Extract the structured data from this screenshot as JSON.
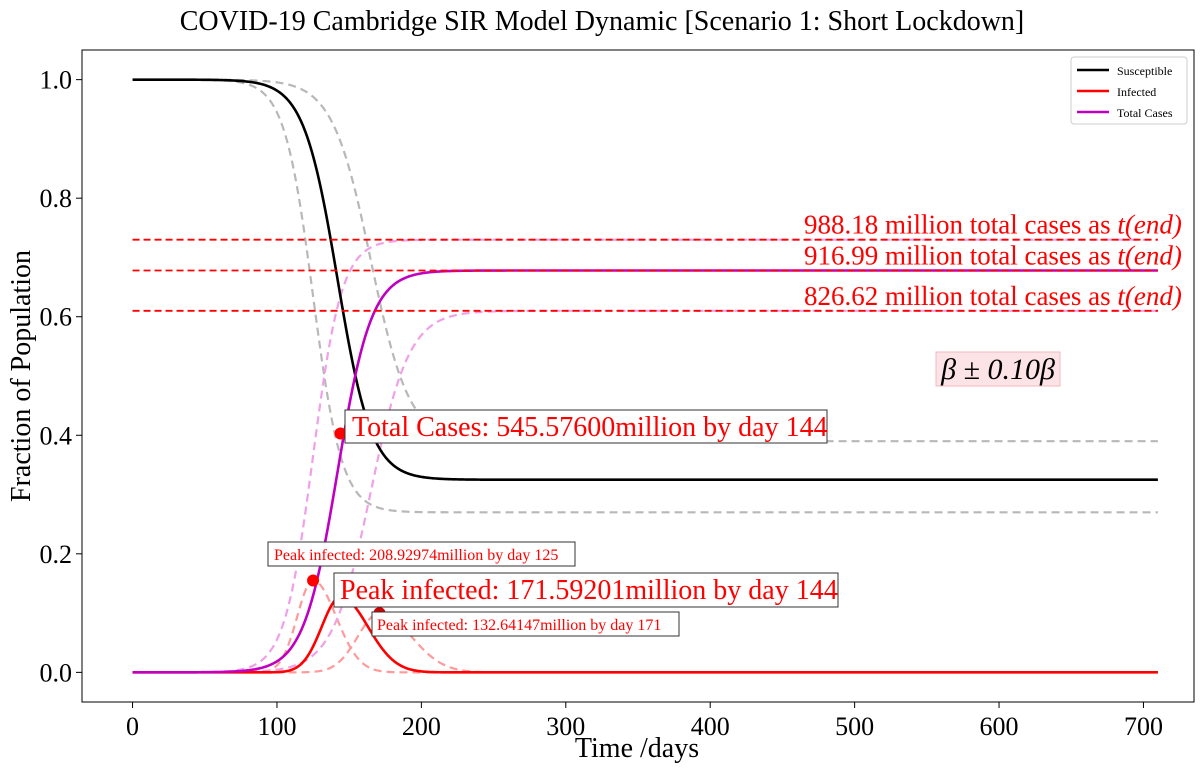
{
  "chart_data": {
    "type": "line",
    "title": "COVID-19 Cambridge SIR Model Dynamic [Scenario 1: Short Lockdown]",
    "xlabel": "Time /days",
    "ylabel": "Fraction of Population",
    "xlim": [
      -35,
      735
    ],
    "ylim": [
      -0.05,
      1.05
    ],
    "xticks": [
      0,
      100,
      200,
      300,
      400,
      500,
      600,
      700
    ],
    "yticks": [
      0.0,
      0.2,
      0.4,
      0.6,
      0.8,
      1.0
    ],
    "ytick_labels": [
      "0.0",
      "0.2",
      "0.4",
      "0.6",
      "0.8",
      "1.0"
    ],
    "grid": false,
    "legend_position": "top-right",
    "series": [
      {
        "name": "Susceptible",
        "color": "#000000",
        "style": "solid",
        "kind": "susceptible",
        "t0": 142,
        "k": 0.085,
        "final": 0.325
      },
      {
        "name": "Infected",
        "color": "#ff0000",
        "style": "solid",
        "kind": "infected",
        "peak": 0.127,
        "peak_day": 144,
        "sigma_left": 13,
        "sigma_right": 19
      },
      {
        "name": "Total Cases",
        "color": "#c000c0",
        "style": "solid",
        "kind": "total",
        "t0": 142,
        "k": 0.085,
        "final": 0.678
      },
      {
        "name": "",
        "color": "#b8b8b8",
        "style": "dashed",
        "kind": "susceptible",
        "t0": 125,
        "k": 0.1,
        "final": 0.27
      },
      {
        "name": "",
        "color": "#b8b8b8",
        "style": "dashed",
        "kind": "susceptible",
        "t0": 165,
        "k": 0.075,
        "final": 0.39
      },
      {
        "name": "",
        "color": "#ff9a9a",
        "style": "dashed",
        "kind": "infected",
        "peak": 0.155,
        "peak_day": 125,
        "sigma_left": 11,
        "sigma_right": 16
      },
      {
        "name": "",
        "color": "#ff9a9a",
        "style": "dashed",
        "kind": "infected",
        "peak": 0.1,
        "peak_day": 171,
        "sigma_left": 15,
        "sigma_right": 22
      },
      {
        "name": "",
        "color": "#f0a0e8",
        "style": "dashed",
        "kind": "total",
        "t0": 125,
        "k": 0.1,
        "final": 0.73
      },
      {
        "name": "",
        "color": "#f0a0e8",
        "style": "dashed",
        "kind": "total",
        "t0": 165,
        "k": 0.075,
        "final": 0.61
      }
    ],
    "x_end": 710,
    "hlines": [
      {
        "y": 0.73,
        "label": "988.18 million total cases as",
        "label_tail": "t(end)"
      },
      {
        "y": 0.678,
        "label": "916.99 million total cases as",
        "label_tail": "t(end)"
      },
      {
        "y": 0.61,
        "label": "826.62 million total cases as",
        "label_tail": "t(end)"
      }
    ],
    "points": [
      {
        "x": 144,
        "y": 0.403,
        "color": "#ff0000"
      },
      {
        "x": 125,
        "y": 0.155,
        "color": "#ff0000"
      },
      {
        "x": 144,
        "y": 0.127,
        "color": "#cc0000"
      },
      {
        "x": 171,
        "y": 0.1,
        "color": "#cc0000"
      }
    ],
    "annotations": {
      "total_cases": "Total Cases: 545.57600million by day 144",
      "peak_main": "Peak infected: 171.59201million by day 144",
      "peak_high": "Peak infected: 208.92974million by day 125",
      "peak_low": "Peak infected: 132.64147million by day 171",
      "beta": "β ± 0.10β"
    }
  }
}
